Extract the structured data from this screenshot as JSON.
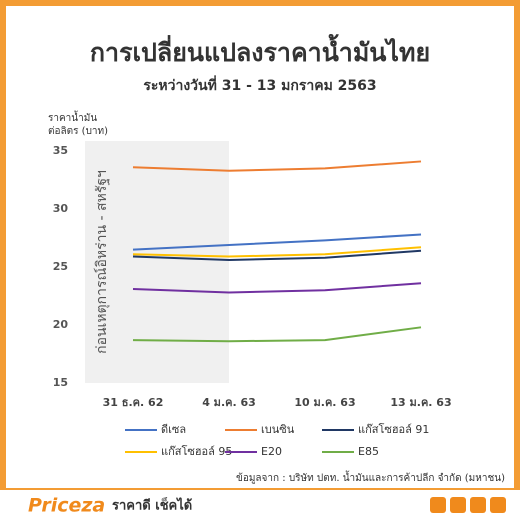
{
  "chart_data": {
    "type": "line",
    "title": "การเปลี่ยนแปลงราคาน้ำมันไทย",
    "subtitle": "ระหว่างวันที่ 31 - 13 มกราคม 2563",
    "y_label": [
      "ราคาน้ำมัน",
      "ต่อลิตร (บาท)"
    ],
    "annotation": "ก่อนเหตุการณ์อิหร่าน - สหรัฐฯ",
    "source": "ข้อมูลจาก : บริษัท ปตท. น้ำมันและการค้าปลีก จำกัด (มหาชน)",
    "categories": [
      "31 ธ.ค. 62",
      "4 ม.ค. 63",
      "10 ม.ค. 63",
      "13 ม.ค. 63"
    ],
    "series": [
      {
        "name": "ดีเซล",
        "color": "#4472c4",
        "values": [
          26.5,
          26.9,
          27.3,
          27.8
        ]
      },
      {
        "name": "เบนซิน",
        "color": "#ed7d31",
        "values": [
          33.6,
          33.3,
          33.5,
          34.1
        ]
      },
      {
        "name": "แก๊สโซฮอล์ 91",
        "color": "#203864",
        "values": [
          25.9,
          25.6,
          25.8,
          26.4
        ]
      },
      {
        "name": "แก๊สโซฮอล์ 95",
        "color": "#ffc000",
        "values": [
          26.1,
          25.9,
          26.1,
          26.7
        ]
      },
      {
        "name": "E20",
        "color": "#7030a0",
        "values": [
          23.1,
          22.8,
          23.0,
          23.6
        ]
      },
      {
        "name": "E85",
        "color": "#70ad47",
        "values": [
          18.7,
          18.6,
          18.7,
          19.8
        ]
      }
    ],
    "ylim": [
      15,
      35
    ],
    "yticks": [
      15,
      20,
      25,
      30,
      35
    ],
    "grid": false
  },
  "footer": {
    "brand": "Priceza",
    "slogan": "ราคาดี เช็คได้"
  }
}
